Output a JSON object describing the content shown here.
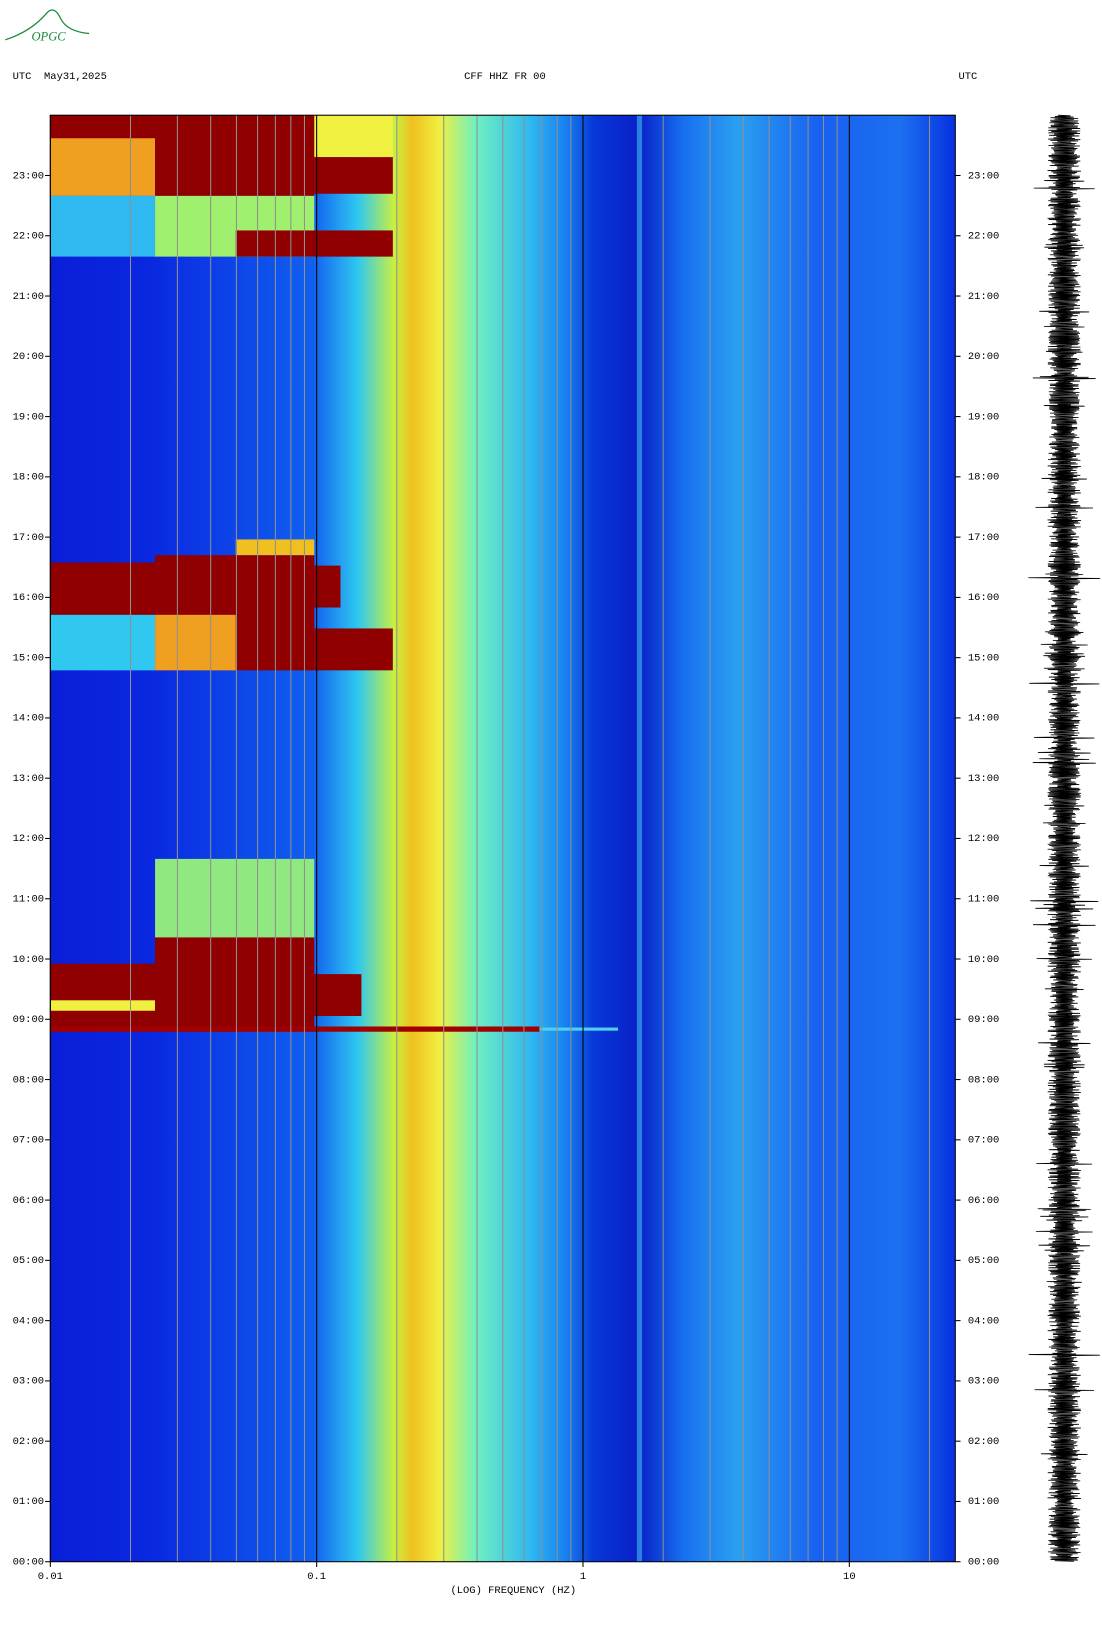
{
  "chart_data": {
    "type": "spectrogram",
    "logo": "OPGC",
    "title": "CFF HHZ FR 00",
    "left_header": "UTC  May31,2025",
    "right_header": "UTC",
    "xlabel": "(LOG) FREQUENCY (HZ)",
    "xscale": "log",
    "xlim": [
      0.01,
      25
    ],
    "xticks": [
      0.01,
      0.1,
      1,
      10
    ],
    "ylim": [
      0,
      24
    ],
    "yticks": [
      {
        "value": 0,
        "label": "00:00"
      },
      {
        "value": 1,
        "label": "01:00"
      },
      {
        "value": 2,
        "label": "02:00"
      },
      {
        "value": 3,
        "label": "03:00"
      },
      {
        "value": 4,
        "label": "04:00"
      },
      {
        "value": 5,
        "label": "05:00"
      },
      {
        "value": 6,
        "label": "06:00"
      },
      {
        "value": 7,
        "label": "07:00"
      },
      {
        "value": 8,
        "label": "08:00"
      },
      {
        "value": 9,
        "label": "09:00"
      },
      {
        "value": 10,
        "label": "10:00"
      },
      {
        "value": 11,
        "label": "11:00"
      },
      {
        "value": 12,
        "label": "12:00"
      },
      {
        "value": 13,
        "label": "13:00"
      },
      {
        "value": 14,
        "label": "14:00"
      },
      {
        "value": 15,
        "label": "15:00"
      },
      {
        "value": 16,
        "label": "16:00"
      },
      {
        "value": 17,
        "label": "17:00"
      },
      {
        "value": 18,
        "label": "18:00"
      },
      {
        "value": 19,
        "label": "19:00"
      },
      {
        "value": 20,
        "label": "20:00"
      },
      {
        "value": 21,
        "label": "21:00"
      },
      {
        "value": 22,
        "label": "22:00"
      },
      {
        "value": 23,
        "label": "23:00"
      }
    ],
    "grid": true
  }
}
